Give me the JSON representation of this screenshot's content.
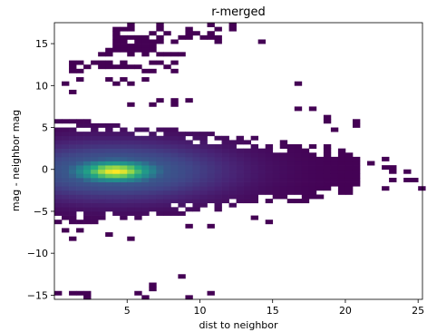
{
  "chart_data": {
    "type": "heatmap",
    "title": "r-merged",
    "xlabel": "dist to neighbor",
    "ylabel": "mag - neighbor mag",
    "xlim": [
      0,
      25.3
    ],
    "ylim": [
      -15.5,
      17.5
    ],
    "xticks": [
      5,
      10,
      15,
      20,
      25
    ],
    "yticks": [
      -15,
      -10,
      -5,
      0,
      5,
      10,
      15
    ],
    "grid": false,
    "colormap": "viridis",
    "bin_size": [
      0.5,
      0.5
    ],
    "core": {
      "x_range": [
        0.25,
        21
      ],
      "y_center": -0.3,
      "peak_x": 4.2,
      "peak_y": -0.2,
      "half_width_start": 6.2,
      "half_width_end": 2.5
    },
    "sparse_bins": [
      [
        5.25,
        17.25
      ],
      [
        7.25,
        17.25
      ],
      [
        10.75,
        17.25
      ],
      [
        12.25,
        17.25
      ],
      [
        4.25,
        16.75
      ],
      [
        4.75,
        16.75
      ],
      [
        5.25,
        16.75
      ],
      [
        7.25,
        16.75
      ],
      [
        9.25,
        16.75
      ],
      [
        11.25,
        16.75
      ],
      [
        12.25,
        16.75
      ],
      [
        4.25,
        16.25
      ],
      [
        6.75,
        16.25
      ],
      [
        7.75,
        16.25
      ],
      [
        9.25,
        16.25
      ],
      [
        9.75,
        16.25
      ],
      [
        10.75,
        16.25
      ],
      [
        4.25,
        15.75
      ],
      [
        4.75,
        15.75
      ],
      [
        5.25,
        15.75
      ],
      [
        5.75,
        15.75
      ],
      [
        6.25,
        15.75
      ],
      [
        7.25,
        15.75
      ],
      [
        8.75,
        15.75
      ],
      [
        9.25,
        15.75
      ],
      [
        10.25,
        15.75
      ],
      [
        10.75,
        15.75
      ],
      [
        11.25,
        15.75
      ],
      [
        4.25,
        15.25
      ],
      [
        4.75,
        15.25
      ],
      [
        5.75,
        15.25
      ],
      [
        6.25,
        15.25
      ],
      [
        6.75,
        15.25
      ],
      [
        7.25,
        15.25
      ],
      [
        8.25,
        15.25
      ],
      [
        11.25,
        15.25
      ],
      [
        14.25,
        15.25
      ],
      [
        4.25,
        14.75
      ],
      [
        4.75,
        14.75
      ],
      [
        5.25,
        14.75
      ],
      [
        5.75,
        14.75
      ],
      [
        6.25,
        14.75
      ],
      [
        6.75,
        14.75
      ],
      [
        3.75,
        14.25
      ],
      [
        4.25,
        14.25
      ],
      [
        4.75,
        14.25
      ],
      [
        5.25,
        14.25
      ],
      [
        5.75,
        14.25
      ],
      [
        6.25,
        14.25
      ],
      [
        6.75,
        14.25
      ],
      [
        3.25,
        13.75
      ],
      [
        3.75,
        13.75
      ],
      [
        5.25,
        13.75
      ],
      [
        6.25,
        13.75
      ],
      [
        7.25,
        13.75
      ],
      [
        7.75,
        13.75
      ],
      [
        8.25,
        13.75
      ],
      [
        8.75,
        13.75
      ],
      [
        1.25,
        12.75
      ],
      [
        1.75,
        12.75
      ],
      [
        2.75,
        12.75
      ],
      [
        3.25,
        12.75
      ],
      [
        3.75,
        12.75
      ],
      [
        4.75,
        12.75
      ],
      [
        6.75,
        12.75
      ],
      [
        7.25,
        12.75
      ],
      [
        8.25,
        12.75
      ],
      [
        1.25,
        12.25
      ],
      [
        2.25,
        12.25
      ],
      [
        3.25,
        12.25
      ],
      [
        3.75,
        12.25
      ],
      [
        4.25,
        12.25
      ],
      [
        4.75,
        12.25
      ],
      [
        5.25,
        12.25
      ],
      [
        5.75,
        12.25
      ],
      [
        7.75,
        12.25
      ],
      [
        1.25,
        11.75
      ],
      [
        1.75,
        11.75
      ],
      [
        6.25,
        11.75
      ],
      [
        6.75,
        11.75
      ],
      [
        8.25,
        11.75
      ],
      [
        1.75,
        10.75
      ],
      [
        3.75,
        10.75
      ],
      [
        4.75,
        10.75
      ],
      [
        6.25,
        10.75
      ],
      [
        0.75,
        10.25
      ],
      [
        4.25,
        10.25
      ],
      [
        5.25,
        10.25
      ],
      [
        16.75,
        10.25
      ],
      [
        1.25,
        9.25
      ],
      [
        7.25,
        8.25
      ],
      [
        8.25,
        8.25
      ],
      [
        9.25,
        8.25
      ],
      [
        5.25,
        7.75
      ],
      [
        6.75,
        7.75
      ],
      [
        8.25,
        7.75
      ],
      [
        16.75,
        7.25
      ],
      [
        17.75,
        7.25
      ],
      [
        18.75,
        6.25
      ],
      [
        18.75,
        5.75
      ],
      [
        20.75,
        5.75
      ],
      [
        20.75,
        5.25
      ],
      [
        19.25,
        4.75
      ],
      [
        22.75,
        1.25
      ],
      [
        21.75,
        0.75
      ],
      [
        22.75,
        0.25
      ],
      [
        23.25,
        0.25
      ],
      [
        23.25,
        -0.25
      ],
      [
        24.25,
        -0.25
      ],
      [
        23.25,
        -1.25
      ],
      [
        24.25,
        -1.25
      ],
      [
        24.75,
        -1.25
      ],
      [
        22.75,
        -2.25
      ],
      [
        25.25,
        -2.25
      ],
      [
        0.75,
        -7.25
      ],
      [
        1.75,
        -7.25
      ],
      [
        1.25,
        -8.25
      ],
      [
        3.75,
        -7.75
      ],
      [
        5.25,
        -8.25
      ],
      [
        9.25,
        -6.75
      ],
      [
        10.75,
        -6.75
      ],
      [
        13.75,
        -5.75
      ],
      [
        14.75,
        -6.25
      ],
      [
        8.75,
        -12.75
      ],
      [
        6.75,
        -13.75
      ],
      [
        6.75,
        -14.25
      ],
      [
        0.25,
        -14.75
      ],
      [
        1.25,
        -14.75
      ],
      [
        1.75,
        -14.75
      ],
      [
        2.25,
        -14.75
      ],
      [
        5.75,
        -14.75
      ],
      [
        10.75,
        -14.75
      ],
      [
        2.25,
        -15.25
      ],
      [
        6.25,
        -15.25
      ],
      [
        9.25,
        -15.25
      ]
    ]
  }
}
